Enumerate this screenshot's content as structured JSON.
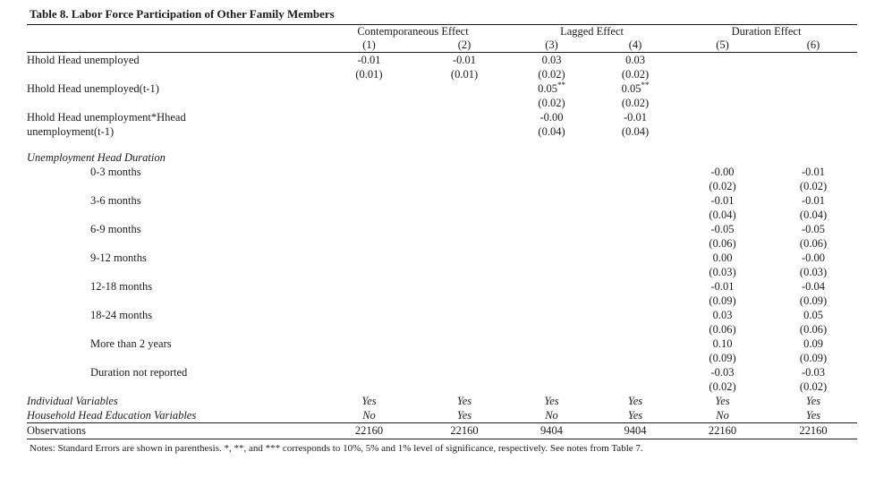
{
  "title": "Table 8. Labor Force Participation of Other Family Members",
  "table": {
    "group_headers": [
      {
        "label": "Contemporaneous Effect",
        "span": 2
      },
      {
        "label": "Lagged Effect",
        "span": 2
      },
      {
        "label": "Duration Effect",
        "span": 2
      }
    ],
    "column_numbers": [
      "(1)",
      "(2)",
      "(3)",
      "(4)",
      "(5)",
      "(6)"
    ],
    "rows": [
      {
        "label": "Hhold Head unemployed",
        "cells": [
          "-0.01",
          "-0.01",
          "0.03",
          "0.03",
          "",
          ""
        ]
      },
      {
        "label": "",
        "cells": [
          "(0.01)",
          "(0.01)",
          "(0.02)",
          "(0.02)",
          "",
          ""
        ]
      },
      {
        "label": "Hhold Head unemployed(t-1)",
        "cells": [
          "",
          "",
          "0.05**",
          "0.05**",
          "",
          ""
        ]
      },
      {
        "label": "",
        "cells": [
          "",
          "",
          "(0.02)",
          "(0.02)",
          "",
          ""
        ]
      },
      {
        "label": "Hhold Head unemployment*Hhead",
        "cells": [
          "",
          "",
          "-0.00",
          "-0.01",
          "",
          ""
        ]
      },
      {
        "label": "unemployment(t-1)",
        "cells": [
          "",
          "",
          "(0.04)",
          "(0.04)",
          "",
          ""
        ]
      },
      {
        "label": "",
        "spacer": true,
        "cells": [
          "",
          "",
          "",
          "",
          "",
          ""
        ]
      },
      {
        "label": "Unemployment Head Duration",
        "italic": true,
        "cells": [
          "",
          "",
          "",
          "",
          "",
          ""
        ]
      },
      {
        "label": "0-3 months",
        "indent": true,
        "cells": [
          "",
          "",
          "",
          "",
          "-0.00",
          "-0.01"
        ]
      },
      {
        "label": "",
        "cells": [
          "",
          "",
          "",
          "",
          "(0.02)",
          "(0.02)"
        ]
      },
      {
        "label": "3-6 months",
        "indent": true,
        "cells": [
          "",
          "",
          "",
          "",
          "-0.01",
          "-0.01"
        ]
      },
      {
        "label": "",
        "cells": [
          "",
          "",
          "",
          "",
          "(0.04)",
          "(0.04)"
        ]
      },
      {
        "label": "6-9 months",
        "indent": true,
        "cells": [
          "",
          "",
          "",
          "",
          "-0.05",
          "-0.05"
        ]
      },
      {
        "label": "",
        "cells": [
          "",
          "",
          "",
          "",
          "(0.06)",
          "(0.06)"
        ]
      },
      {
        "label": "9-12 months",
        "indent": true,
        "cells": [
          "",
          "",
          "",
          "",
          "0.00",
          "-0.00"
        ]
      },
      {
        "label": "",
        "cells": [
          "",
          "",
          "",
          "",
          "(0.03)",
          "(0.03)"
        ]
      },
      {
        "label": "12-18 months",
        "indent": true,
        "cells": [
          "",
          "",
          "",
          "",
          "-0.01",
          "-0.04"
        ]
      },
      {
        "label": "",
        "cells": [
          "",
          "",
          "",
          "",
          "(0.09)",
          "(0.09)"
        ]
      },
      {
        "label": "18-24 months",
        "indent": true,
        "cells": [
          "",
          "",
          "",
          "",
          "0.03",
          "0.05"
        ]
      },
      {
        "label": "",
        "cells": [
          "",
          "",
          "",
          "",
          "(0.06)",
          "(0.06)"
        ]
      },
      {
        "label": "More than 2 years",
        "indent": true,
        "cells": [
          "",
          "",
          "",
          "",
          "0.10",
          "0.09"
        ]
      },
      {
        "label": "",
        "cells": [
          "",
          "",
          "",
          "",
          "(0.09)",
          "(0.09)"
        ]
      },
      {
        "label": "Duration not reported",
        "indent": true,
        "cells": [
          "",
          "",
          "",
          "",
          "-0.03",
          "-0.03"
        ]
      },
      {
        "label": "",
        "cells": [
          "",
          "",
          "",
          "",
          "(0.02)",
          "(0.02)"
        ]
      },
      {
        "label": "Individual Variables",
        "italic": true,
        "italic_cells": true,
        "cells": [
          "Yes",
          "Yes",
          "Yes",
          "Yes",
          "Yes",
          "Yes"
        ]
      },
      {
        "label": "Household Head Education Variables",
        "italic": true,
        "italic_cells": true,
        "cells": [
          "No",
          "Yes",
          "No",
          "Yes",
          "No",
          "Yes"
        ]
      },
      {
        "label": "Observations",
        "rule": true,
        "cells": [
          "22160",
          "22160",
          "9404",
          "9404",
          "22160",
          "22160"
        ]
      }
    ]
  },
  "notes": "Notes: Standard Errors are shown in parenthesis. *, **, and *** corresponds to 10%, 5% and 1% level of significance, respectively. See notes from Table 7."
}
